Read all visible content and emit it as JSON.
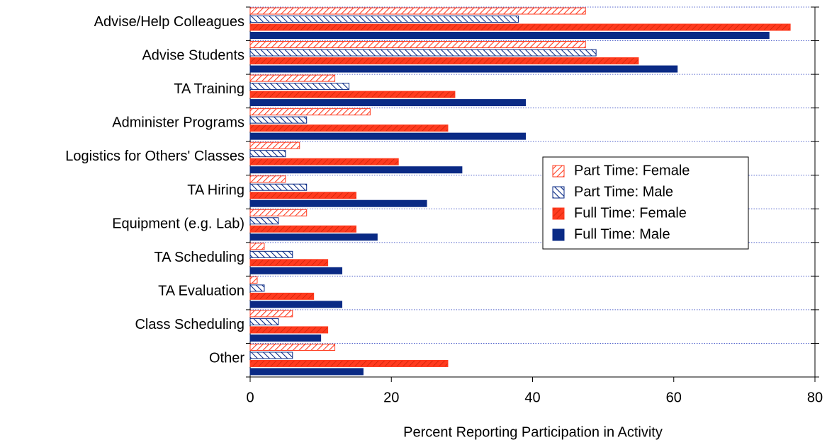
{
  "chart_data": {
    "type": "barh",
    "xlabel": "Percent Reporting Participation in Activity",
    "categories": [
      "Advise/Help Colleagues",
      "Advise Students",
      "TA Training",
      "Administer Programs",
      "Logistics for Others' Classes",
      "TA Hiring",
      "Equipment (e.g. Lab)",
      "TA Scheduling",
      "TA Evaluation",
      "Class Scheduling",
      "Other"
    ],
    "series": [
      {
        "name": "Part Time: Female",
        "color": "#ff3b1f",
        "hatch": true,
        "values": [
          47.5,
          47.5,
          12,
          17,
          7,
          5,
          8,
          2,
          1,
          6,
          12
        ]
      },
      {
        "name": "Part Time: Male",
        "color": "#0a2a85",
        "hatch": true,
        "values": [
          38,
          49,
          14,
          8,
          5,
          8,
          4,
          6,
          2,
          4,
          6
        ]
      },
      {
        "name": "Full Time: Female",
        "color": "#ff3b1f",
        "hatch": false,
        "values": [
          76.5,
          55,
          29,
          28,
          21,
          15,
          15,
          11,
          9,
          11,
          28
        ]
      },
      {
        "name": "Full Time: Male",
        "color": "#0a2a85",
        "hatch": false,
        "values": [
          73.5,
          60.5,
          39,
          39,
          30,
          25,
          18,
          13,
          13,
          10,
          16
        ]
      }
    ],
    "xlim": [
      0,
      80
    ],
    "xticks": [
      0,
      20,
      40,
      60,
      80
    ],
    "legend": "center-right"
  }
}
